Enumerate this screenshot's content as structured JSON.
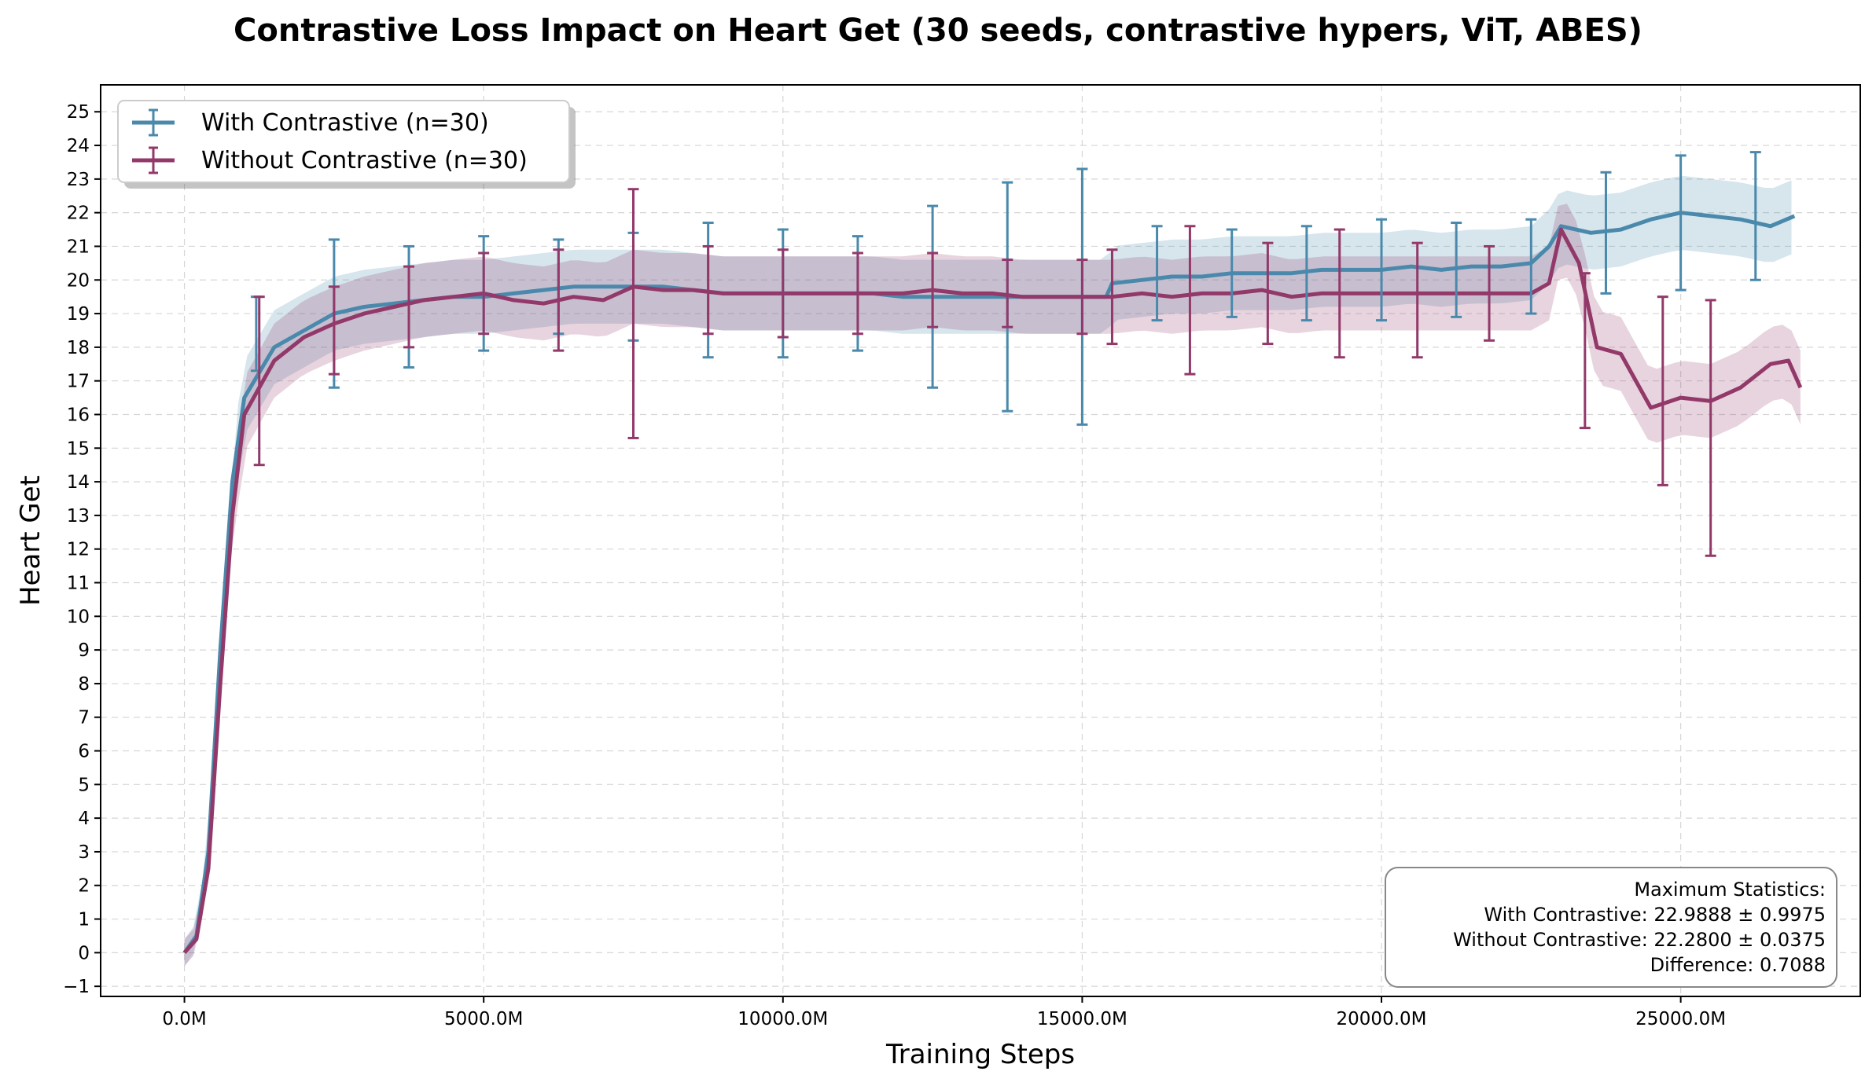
{
  "chart_data": {
    "type": "line",
    "title": "Contrastive Loss Impact on Heart Get (30 seeds, contrastive hypers, ViT, ABES)",
    "xlabel": "Training Steps",
    "ylabel": "Heart Get",
    "xlim": [
      -1400,
      28000
    ],
    "ylim": [
      -1.3,
      25.8
    ],
    "x_ticks": [
      0,
      5000,
      10000,
      15000,
      20000,
      25000
    ],
    "x_tick_labels": [
      "0.0M",
      "5000.0M",
      "10000.0M",
      "15000.0M",
      "20000.0M",
      "25000.0M"
    ],
    "y_ticks": [
      -1,
      0,
      1,
      2,
      3,
      4,
      5,
      6,
      7,
      8,
      9,
      10,
      11,
      12,
      13,
      14,
      15,
      16,
      17,
      18,
      19,
      20,
      21,
      22,
      23,
      24,
      25
    ],
    "y_tick_labels": [
      "−1",
      "0",
      "1",
      "2",
      "3",
      "4",
      "5",
      "6",
      "7",
      "8",
      "9",
      "10",
      "11",
      "12",
      "13",
      "14",
      "15",
      "16",
      "17",
      "18",
      "19",
      "20",
      "21",
      "22",
      "23",
      "24",
      "25"
    ],
    "grid": true,
    "legend_position": "top-left",
    "series": [
      {
        "name": "With Contrastive (n=30)",
        "color": "#4a89ab",
        "x": [
          0,
          200,
          400,
          600,
          800,
          1000,
          1500,
          2000,
          2500,
          3000,
          3500,
          4000,
          4500,
          5000,
          5500,
          6000,
          6500,
          7000,
          7500,
          8000,
          8500,
          9000,
          9500,
          10000,
          10500,
          11000,
          11500,
          12000,
          12500,
          13000,
          13500,
          14000,
          14500,
          15000,
          15400,
          15500,
          16000,
          16500,
          17000,
          17500,
          18000,
          18500,
          19000,
          19500,
          20000,
          20500,
          21000,
          21500,
          22000,
          22500,
          22800,
          23000,
          23500,
          24000,
          24500,
          25000,
          25500,
          26000,
          26500,
          26900
        ],
        "y": [
          0,
          0.5,
          3,
          9,
          14,
          16.5,
          18,
          18.5,
          19,
          19.2,
          19.3,
          19.4,
          19.5,
          19.5,
          19.6,
          19.7,
          19.8,
          19.8,
          19.8,
          19.8,
          19.7,
          19.6,
          19.6,
          19.6,
          19.6,
          19.6,
          19.6,
          19.5,
          19.5,
          19.5,
          19.5,
          19.5,
          19.5,
          19.5,
          19.5,
          19.9,
          20.0,
          20.1,
          20.1,
          20.2,
          20.2,
          20.2,
          20.3,
          20.3,
          20.3,
          20.4,
          20.3,
          20.4,
          20.4,
          20.5,
          21.0,
          21.6,
          21.4,
          21.5,
          21.8,
          22.0,
          21.9,
          21.8,
          21.6,
          21.9
        ],
        "error_bars": [
          {
            "x": 1200,
            "y": 18.4,
            "err": 1.1
          },
          {
            "x": 2500,
            "y": 19.0,
            "err": 2.2
          },
          {
            "x": 3750,
            "y": 19.2,
            "err": 1.8
          },
          {
            "x": 5000,
            "y": 19.6,
            "err": 1.7
          },
          {
            "x": 6250,
            "y": 19.8,
            "err": 1.4
          },
          {
            "x": 7500,
            "y": 19.8,
            "err": 1.6
          },
          {
            "x": 8750,
            "y": 19.7,
            "err": 2.0
          },
          {
            "x": 10000,
            "y": 19.6,
            "err": 1.9
          },
          {
            "x": 11250,
            "y": 19.6,
            "err": 1.7
          },
          {
            "x": 12500,
            "y": 19.5,
            "err": 2.7
          },
          {
            "x": 13750,
            "y": 19.5,
            "err": 3.4
          },
          {
            "x": 15000,
            "y": 19.5,
            "err": 3.8
          },
          {
            "x": 16250,
            "y": 20.2,
            "err": 1.4
          },
          {
            "x": 17500,
            "y": 20.2,
            "err": 1.3
          },
          {
            "x": 18750,
            "y": 20.2,
            "err": 1.4
          },
          {
            "x": 20000,
            "y": 20.3,
            "err": 1.5
          },
          {
            "x": 21250,
            "y": 20.3,
            "err": 1.4
          },
          {
            "x": 22500,
            "y": 20.4,
            "err": 1.4
          },
          {
            "x": 23750,
            "y": 21.4,
            "err": 1.8
          },
          {
            "x": 25000,
            "y": 21.7,
            "err": 2.0
          },
          {
            "x": 26250,
            "y": 21.9,
            "err": 1.9
          }
        ]
      },
      {
        "name": "Without Contrastive (n=30)",
        "color": "#92396a",
        "x": [
          0,
          200,
          400,
          600,
          800,
          1000,
          1500,
          2000,
          2500,
          3000,
          3500,
          4000,
          4500,
          5000,
          5500,
          6000,
          6500,
          7000,
          7500,
          8000,
          8500,
          9000,
          9500,
          10000,
          10500,
          11000,
          11500,
          12000,
          12500,
          13000,
          13500,
          14000,
          14500,
          15000,
          15500,
          16000,
          16500,
          17000,
          17500,
          18000,
          18500,
          19000,
          19500,
          20000,
          20500,
          21000,
          21500,
          22000,
          22500,
          22800,
          23000,
          23300,
          23600,
          24000,
          24500,
          25000,
          25500,
          26000,
          26500,
          26800,
          27000
        ],
        "y": [
          0,
          0.4,
          2.5,
          8,
          13,
          16,
          17.6,
          18.3,
          18.7,
          19.0,
          19.2,
          19.4,
          19.5,
          19.6,
          19.4,
          19.3,
          19.5,
          19.4,
          19.8,
          19.7,
          19.7,
          19.6,
          19.6,
          19.6,
          19.6,
          19.6,
          19.6,
          19.6,
          19.7,
          19.6,
          19.6,
          19.5,
          19.5,
          19.5,
          19.5,
          19.6,
          19.5,
          19.6,
          19.6,
          19.7,
          19.5,
          19.6,
          19.6,
          19.6,
          19.6,
          19.6,
          19.6,
          19.6,
          19.6,
          19.9,
          21.5,
          20.5,
          18.0,
          17.8,
          16.2,
          16.5,
          16.4,
          16.8,
          17.5,
          17.6,
          16.8
        ],
        "error_bars": [
          {
            "x": 1250,
            "y": 17.0,
            "err": 2.5
          },
          {
            "x": 2500,
            "y": 18.5,
            "err": 1.3
          },
          {
            "x": 3750,
            "y": 19.2,
            "err": 1.2
          },
          {
            "x": 5000,
            "y": 19.6,
            "err": 1.2
          },
          {
            "x": 6250,
            "y": 19.4,
            "err": 1.5
          },
          {
            "x": 7500,
            "y": 19.0,
            "err": 3.7
          },
          {
            "x": 8750,
            "y": 19.7,
            "err": 1.3
          },
          {
            "x": 10000,
            "y": 19.6,
            "err": 1.3
          },
          {
            "x": 11250,
            "y": 19.6,
            "err": 1.2
          },
          {
            "x": 12500,
            "y": 19.7,
            "err": 1.1
          },
          {
            "x": 13750,
            "y": 19.6,
            "err": 1.0
          },
          {
            "x": 15000,
            "y": 19.5,
            "err": 1.1
          },
          {
            "x": 15500,
            "y": 19.5,
            "err": 1.4
          },
          {
            "x": 16800,
            "y": 19.4,
            "err": 2.2
          },
          {
            "x": 18100,
            "y": 19.6,
            "err": 1.5
          },
          {
            "x": 19300,
            "y": 19.6,
            "err": 1.9
          },
          {
            "x": 20600,
            "y": 19.4,
            "err": 1.7
          },
          {
            "x": 21800,
            "y": 19.6,
            "err": 1.4
          },
          {
            "x": 23400,
            "y": 17.9,
            "err": 2.3
          },
          {
            "x": 24700,
            "y": 16.7,
            "err": 2.8
          },
          {
            "x": 25500,
            "y": 15.6,
            "err": 3.8
          }
        ]
      }
    ],
    "annotation": {
      "lines": [
        "Maximum Statistics:",
        "With Contrastive: 22.9888 ± 0.9975",
        "Without Contrastive: 22.2800 ± 0.0375",
        "Difference: 0.7088"
      ],
      "position": "bottom-right"
    }
  }
}
